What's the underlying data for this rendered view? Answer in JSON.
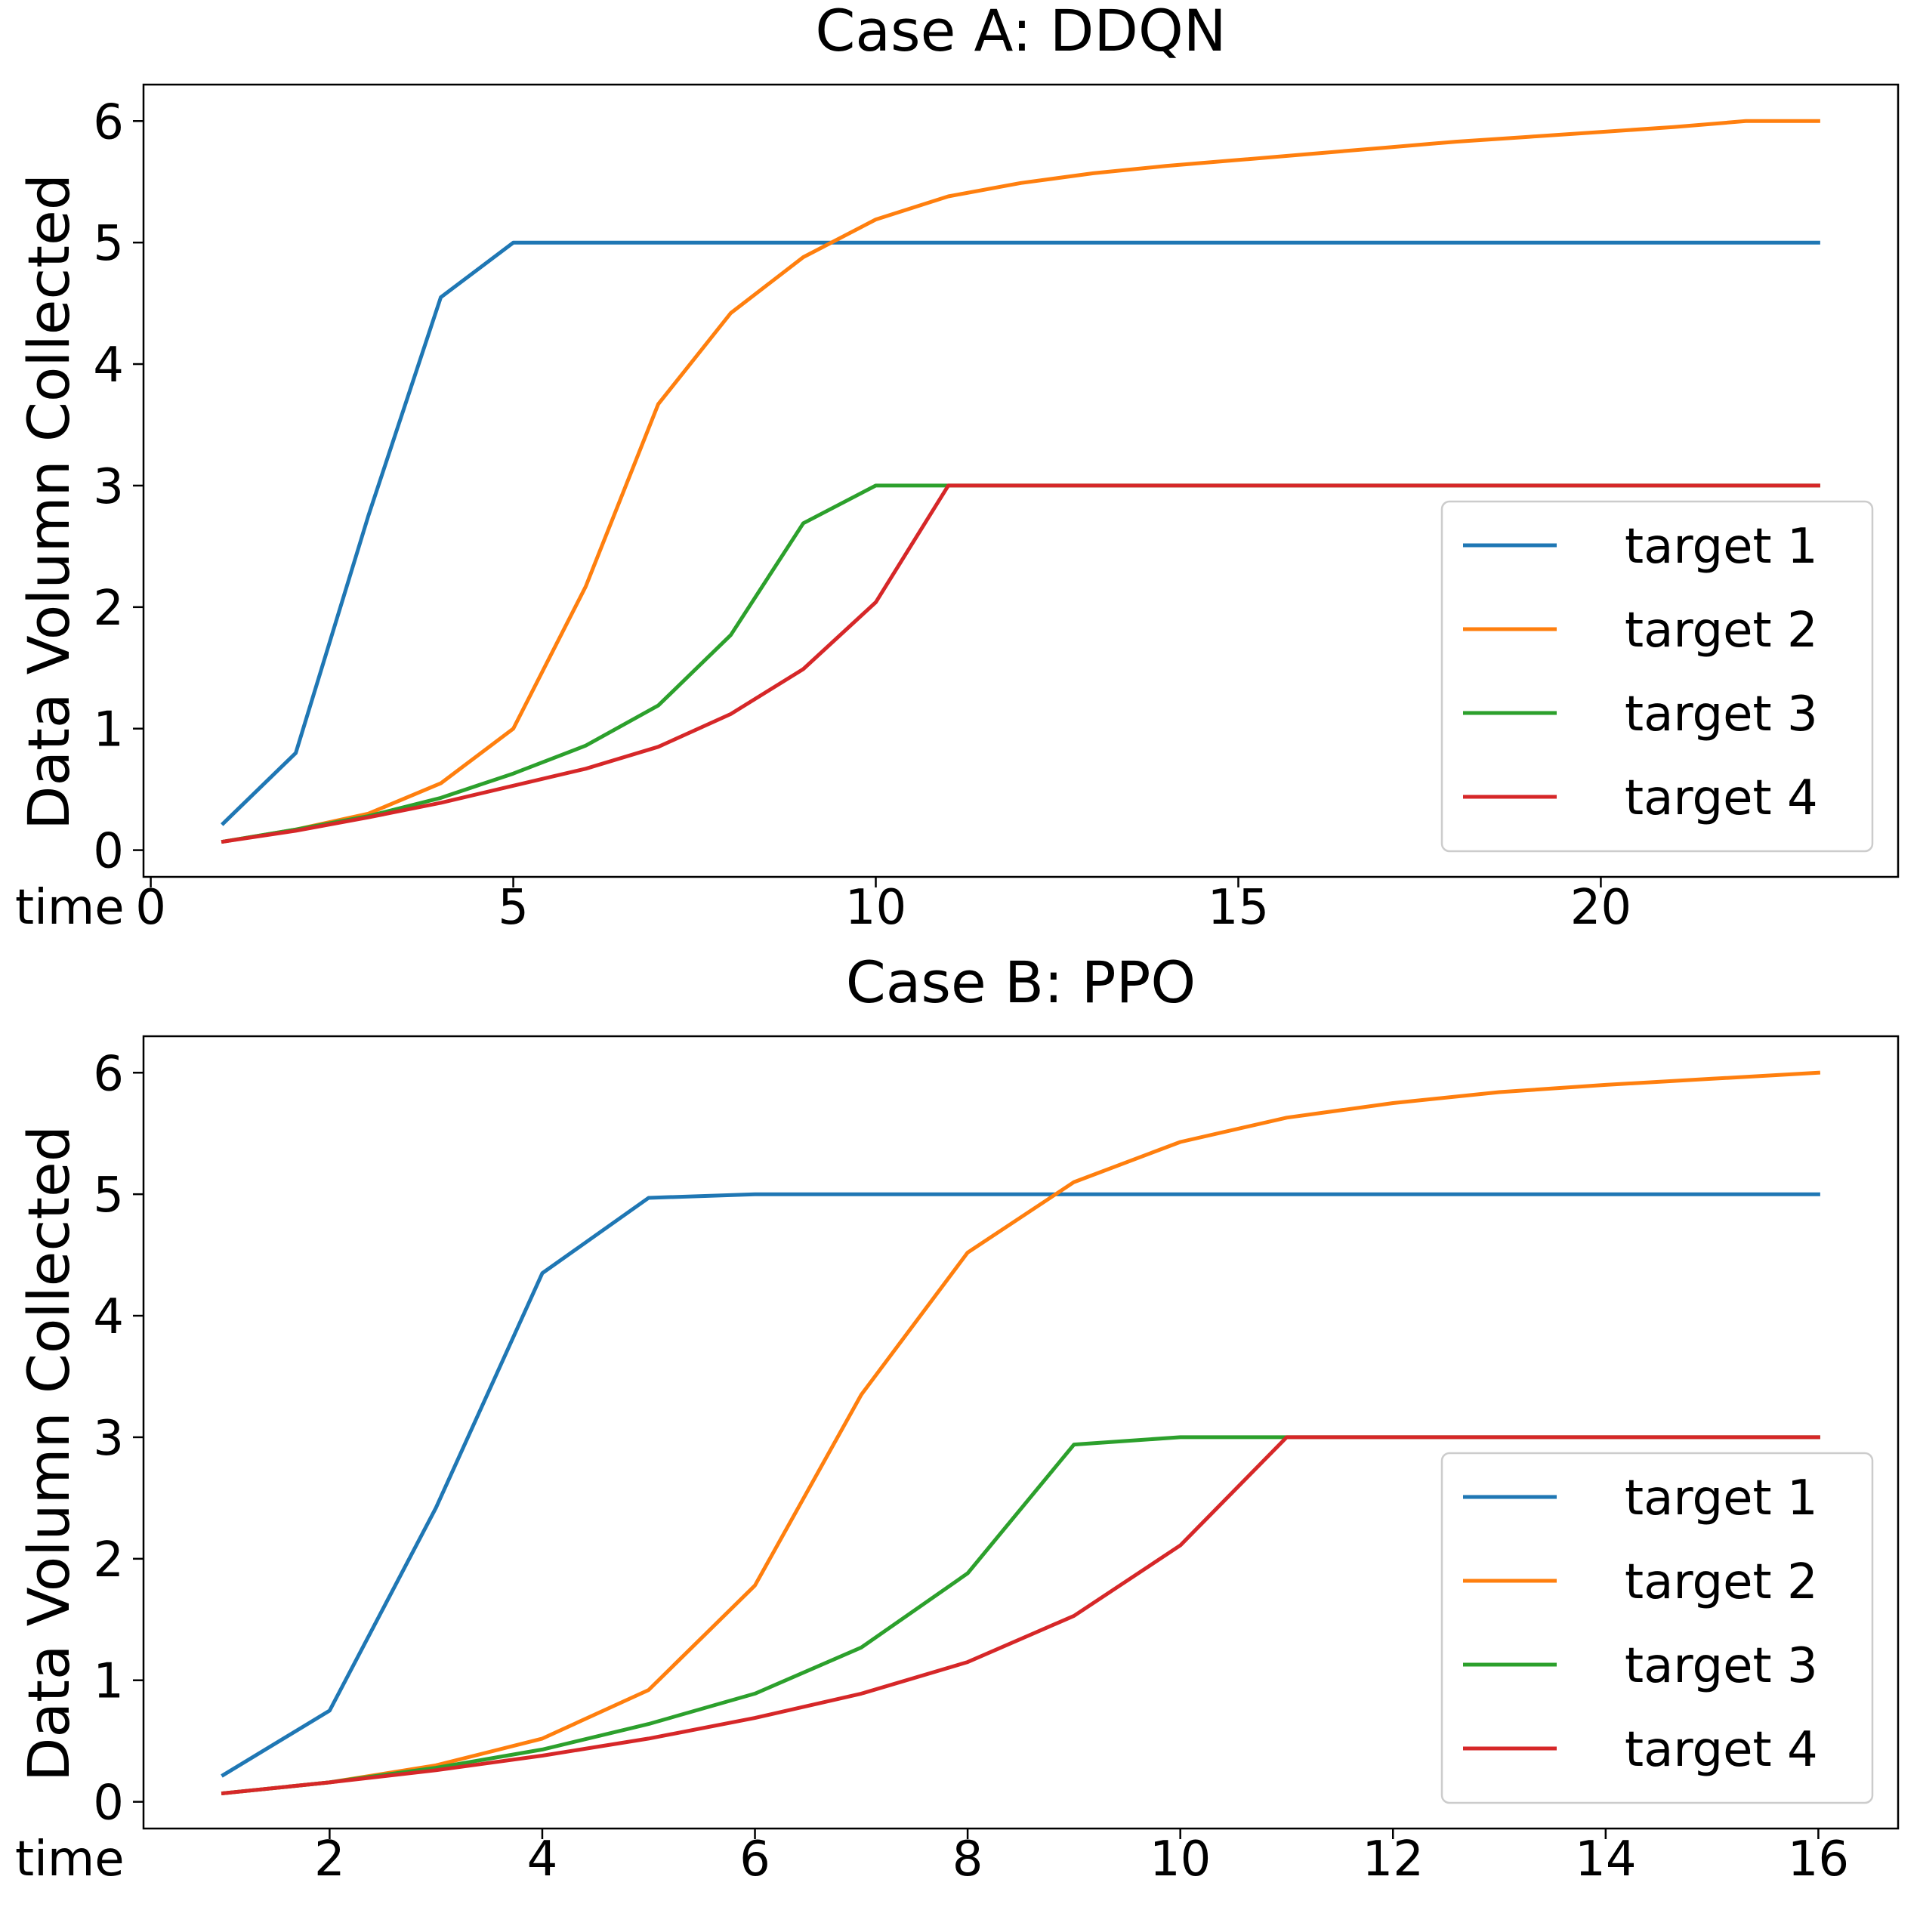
{
  "chart_data": [
    {
      "type": "line",
      "title": "Case A: DDQN",
      "xlabel": "time",
      "ylabel": "Data Volumn Collected",
      "xlim": [
        -0.1,
        24.1
      ],
      "ylim": [
        -0.22,
        6.3
      ],
      "xticks": [
        0,
        5,
        10,
        15,
        20
      ],
      "yticks": [
        0,
        1,
        2,
        3,
        4,
        5,
        6
      ],
      "grid": false,
      "legend_position": "lower-right",
      "x": [
        1,
        2,
        3,
        4,
        5,
        6,
        7,
        8,
        9,
        10,
        11,
        12,
        13,
        14,
        15,
        16,
        17,
        18,
        19,
        20,
        21,
        22,
        23
      ],
      "series": [
        {
          "name": "target 1",
          "color": "#1f77b4",
          "values": [
            0.22,
            0.8,
            2.75,
            4.55,
            5,
            5,
            5,
            5,
            5,
            5,
            5,
            5,
            5,
            5,
            5,
            5,
            5,
            5,
            5,
            5,
            5,
            5,
            5
          ]
        },
        {
          "name": "target 2",
          "color": "#ff7f0e",
          "values": [
            0.07,
            0.17,
            0.3,
            0.55,
            1.0,
            2.17,
            3.67,
            4.42,
            4.88,
            5.19,
            5.38,
            5.49,
            5.57,
            5.63,
            5.68,
            5.73,
            5.78,
            5.83,
            5.87,
            5.91,
            5.95,
            6.0,
            6.0
          ]
        },
        {
          "name": "target 3",
          "color": "#2ca02c",
          "values": [
            0.07,
            0.17,
            0.28,
            0.43,
            0.63,
            0.86,
            1.19,
            1.77,
            2.69,
            3.0,
            3.0,
            3.0,
            3.0,
            3.0,
            3.0,
            3.0,
            3.0,
            3.0,
            3.0,
            3.0,
            3.0,
            3.0,
            3.0
          ]
        },
        {
          "name": "target 4",
          "color": "#d62728",
          "values": [
            0.07,
            0.16,
            0.27,
            0.39,
            0.53,
            0.67,
            0.85,
            1.12,
            1.49,
            2.04,
            3.0,
            3.0,
            3.0,
            3.0,
            3.0,
            3.0,
            3.0,
            3.0,
            3.0,
            3.0,
            3.0,
            3.0,
            3.0
          ]
        }
      ]
    },
    {
      "type": "line",
      "title": "Case B: PPO",
      "xlabel": "time",
      "ylabel": "Data Volumn Collected",
      "xlim": [
        0.25,
        16.75
      ],
      "ylim": [
        -0.22,
        6.3
      ],
      "xticks": [
        2,
        4,
        6,
        8,
        10,
        12,
        14,
        16
      ],
      "yticks": [
        0,
        1,
        2,
        3,
        4,
        5,
        6
      ],
      "grid": false,
      "legend_position": "lower-right",
      "x": [
        1,
        2,
        3,
        4,
        5,
        6,
        7,
        8,
        9,
        10,
        11,
        12,
        13,
        14,
        15,
        16
      ],
      "series": [
        {
          "name": "target 1",
          "color": "#1f77b4",
          "values": [
            0.22,
            0.75,
            2.42,
            4.35,
            4.97,
            5.0,
            5.0,
            5.0,
            5.0,
            5.0,
            5.0,
            5.0,
            5.0,
            5.0,
            5.0,
            5.0
          ]
        },
        {
          "name": "target 2",
          "color": "#ff7f0e",
          "values": [
            0.07,
            0.16,
            0.3,
            0.52,
            0.92,
            1.78,
            3.35,
            4.52,
            5.1,
            5.43,
            5.63,
            5.75,
            5.84,
            5.9,
            5.95,
            6.0
          ]
        },
        {
          "name": "target 3",
          "color": "#2ca02c",
          "values": [
            0.07,
            0.16,
            0.28,
            0.43,
            0.64,
            0.89,
            1.27,
            1.88,
            2.94,
            3.0,
            3.0,
            3.0,
            3.0,
            3.0,
            3.0,
            3.0
          ]
        },
        {
          "name": "target 4",
          "color": "#d62728",
          "values": [
            0.07,
            0.16,
            0.26,
            0.38,
            0.52,
            0.69,
            0.89,
            1.15,
            1.53,
            2.11,
            3.0,
            3.0,
            3.0,
            3.0,
            3.0,
            3.0
          ]
        }
      ]
    }
  ]
}
